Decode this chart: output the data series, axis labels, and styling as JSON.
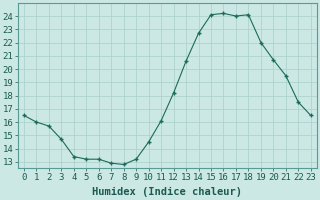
{
  "x": [
    0,
    1,
    2,
    3,
    4,
    5,
    6,
    7,
    8,
    9,
    10,
    11,
    12,
    13,
    14,
    15,
    16,
    17,
    18,
    19,
    20,
    21,
    22,
    23
  ],
  "y": [
    16.5,
    16.0,
    15.7,
    14.7,
    13.4,
    13.2,
    13.2,
    12.9,
    12.8,
    13.2,
    14.5,
    16.1,
    18.2,
    20.6,
    22.7,
    24.1,
    24.2,
    24.0,
    24.1,
    22.0,
    20.7,
    19.5,
    17.5,
    16.5
  ],
  "xlabel": "Humidex (Indice chaleur)",
  "ylim": [
    12.5,
    25.0
  ],
  "xlim": [
    -0.5,
    23.5
  ],
  "yticks": [
    13,
    14,
    15,
    16,
    17,
    18,
    19,
    20,
    21,
    22,
    23,
    24
  ],
  "xticks": [
    0,
    1,
    2,
    3,
    4,
    5,
    6,
    7,
    8,
    9,
    10,
    11,
    12,
    13,
    14,
    15,
    16,
    17,
    18,
    19,
    20,
    21,
    22,
    23
  ],
  "line_color": "#1a6b5a",
  "marker_color": "#1a6b5a",
  "bg_color": "#cce8e5",
  "grid_color": "#aacfcc",
  "xlabel_fontsize": 7.5,
  "tick_fontsize": 6.5
}
